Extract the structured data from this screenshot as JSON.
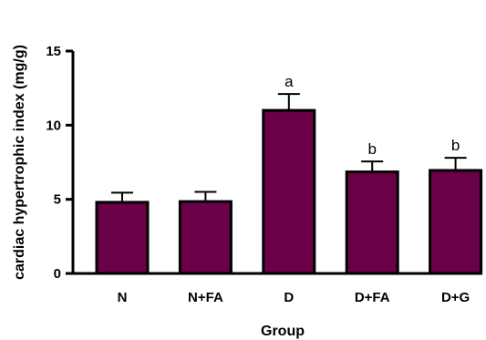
{
  "chart_data": {
    "type": "bar",
    "title": "",
    "xlabel": "Group",
    "ylabel": "cardiac hypertrophic index (mg/g)",
    "categories": [
      "N",
      "N+FA",
      "D",
      "D+FA",
      "D+G"
    ],
    "values": [
      4.8,
      4.85,
      11.0,
      6.85,
      6.95
    ],
    "error": [
      0.65,
      0.65,
      1.1,
      0.7,
      0.85
    ],
    "annotations": [
      "",
      "",
      "a",
      "b",
      "b"
    ],
    "ylim": [
      0,
      15
    ],
    "yticks": [
      0,
      5,
      10,
      15
    ],
    "grid": false,
    "colors": {
      "bar_fill": "#6a0048",
      "bar_stroke": "#000000",
      "axis": "#000000"
    }
  }
}
